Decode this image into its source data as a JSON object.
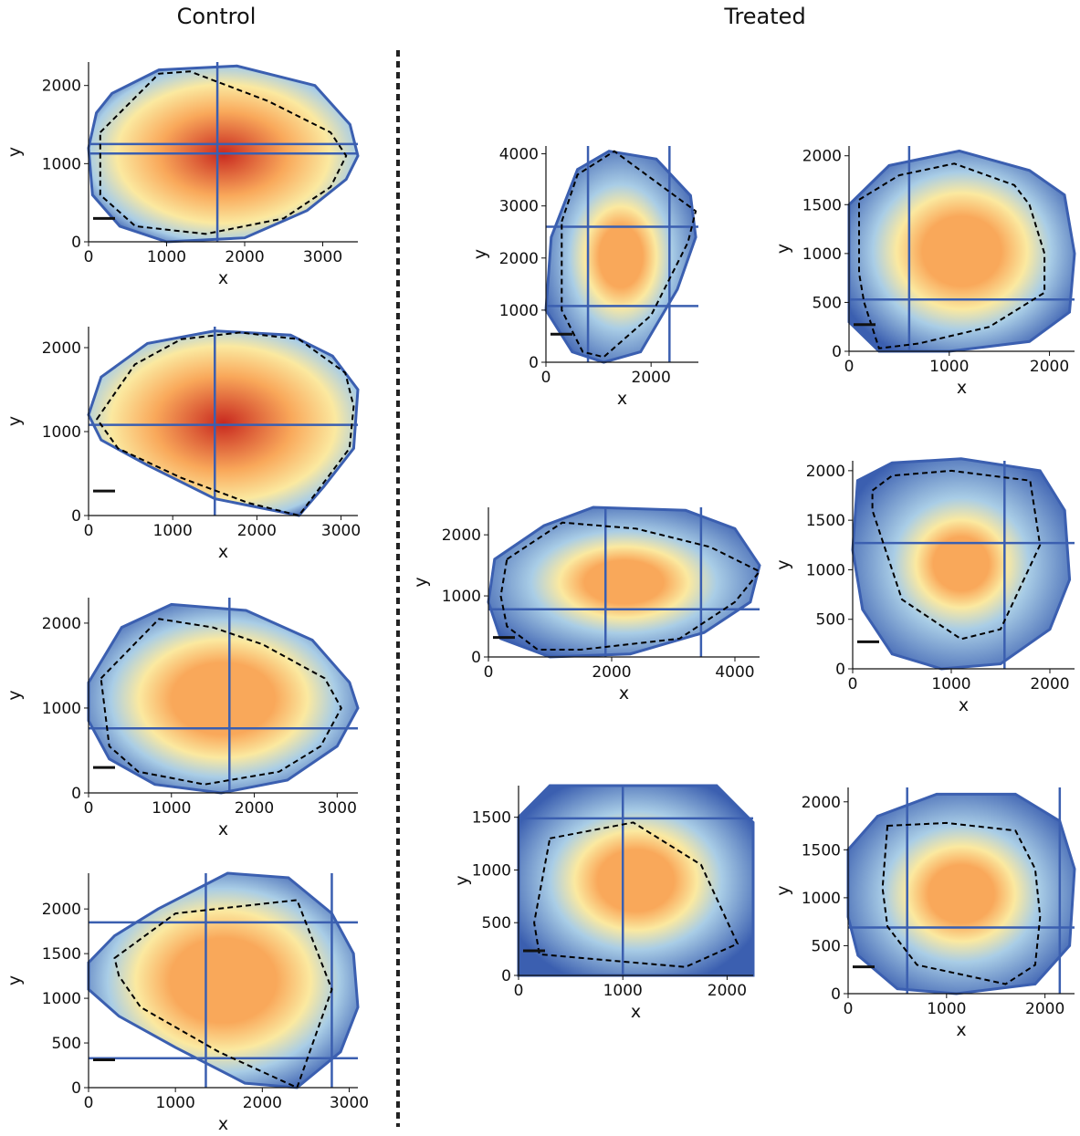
{
  "groups": {
    "control": "Control",
    "treated": "Treated"
  },
  "colors": {
    "hot": "#c8281f",
    "warm": "#f9a85a",
    "mid": "#fbe9a0",
    "cool": "#a9cde6",
    "cold": "#3b5fb0",
    "axis": "#111111",
    "outline": "#000000"
  },
  "chart_data": [
    {
      "type": "heatmap",
      "group": "Control",
      "xlabel": "x",
      "ylabel": "y",
      "xlim": [
        0,
        3450
      ],
      "ylim": [
        0,
        2300
      ],
      "xticks": [
        0,
        1000,
        2000,
        3000
      ],
      "yticks": [
        0,
        1000,
        2000
      ],
      "hot": 0.75,
      "grid_x": [
        1650
      ],
      "grid_y": [
        1250,
        1130
      ],
      "boundary": [
        [
          300,
          1900
        ],
        [
          900,
          2200
        ],
        [
          1900,
          2250
        ],
        [
          2900,
          2000
        ],
        [
          3350,
          1500
        ],
        [
          3450,
          1100
        ],
        [
          3300,
          800
        ],
        [
          2800,
          400
        ],
        [
          2000,
          50
        ],
        [
          1000,
          0
        ],
        [
          400,
          200
        ],
        [
          50,
          600
        ],
        [
          0,
          1200
        ],
        [
          100,
          1650
        ]
      ],
      "roi": [
        [
          150,
          1400
        ],
        [
          900,
          2150
        ],
        [
          1300,
          2180
        ],
        [
          2300,
          1800
        ],
        [
          3100,
          1400
        ],
        [
          3300,
          1100
        ],
        [
          3100,
          700
        ],
        [
          2500,
          300
        ],
        [
          1500,
          100
        ],
        [
          600,
          200
        ],
        [
          150,
          600
        ]
      ]
    },
    {
      "type": "heatmap",
      "group": "Control",
      "xlabel": "x",
      "ylabel": "y",
      "xlim": [
        0,
        3200
      ],
      "ylim": [
        0,
        2250
      ],
      "xticks": [
        0,
        1000,
        2000,
        3000
      ],
      "yticks": [
        0,
        1000,
        2000
      ],
      "hot": 0.8,
      "grid_x": [
        1500
      ],
      "grid_y": [
        1080
      ],
      "boundary": [
        [
          150,
          1650
        ],
        [
          700,
          2050
        ],
        [
          1500,
          2200
        ],
        [
          2400,
          2150
        ],
        [
          2900,
          1900
        ],
        [
          3200,
          1500
        ],
        [
          3150,
          800
        ],
        [
          2800,
          350
        ],
        [
          2500,
          0
        ],
        [
          1500,
          200
        ],
        [
          700,
          600
        ],
        [
          150,
          900
        ],
        [
          0,
          1200
        ]
      ],
      "roi": [
        [
          100,
          1150
        ],
        [
          550,
          1800
        ],
        [
          1100,
          2100
        ],
        [
          1800,
          2180
        ],
        [
          2500,
          2100
        ],
        [
          3050,
          1700
        ],
        [
          3150,
          1300
        ],
        [
          3100,
          800
        ],
        [
          2500,
          0
        ],
        [
          1900,
          150
        ],
        [
          1100,
          450
        ],
        [
          350,
          800
        ]
      ]
    },
    {
      "type": "heatmap",
      "group": "Control",
      "xlabel": "x",
      "ylabel": "y",
      "xlim": [
        0,
        3250
      ],
      "ylim": [
        0,
        2300
      ],
      "xticks": [
        0,
        1000,
        2000,
        3000
      ],
      "yticks": [
        0,
        1000,
        2000
      ],
      "hot": 0.6,
      "grid_x": [
        1700
      ],
      "grid_y": [
        760
      ],
      "boundary": [
        [
          0,
          1300
        ],
        [
          400,
          1950
        ],
        [
          1000,
          2220
        ],
        [
          1900,
          2150
        ],
        [
          2700,
          1800
        ],
        [
          3150,
          1300
        ],
        [
          3250,
          1000
        ],
        [
          3000,
          550
        ],
        [
          2400,
          150
        ],
        [
          1600,
          0
        ],
        [
          800,
          100
        ],
        [
          250,
          400
        ],
        [
          0,
          850
        ]
      ],
      "roi": [
        [
          150,
          1350
        ],
        [
          850,
          2050
        ],
        [
          1500,
          1950
        ],
        [
          2100,
          1750
        ],
        [
          2850,
          1350
        ],
        [
          3050,
          1000
        ],
        [
          2800,
          550
        ],
        [
          2300,
          250
        ],
        [
          1400,
          100
        ],
        [
          600,
          250
        ],
        [
          250,
          550
        ]
      ]
    },
    {
      "type": "heatmap",
      "group": "Control",
      "xlabel": "x",
      "ylabel": "y",
      "xlim": [
        0,
        3100
      ],
      "ylim": [
        0,
        2400
      ],
      "xticks": [
        0,
        1000,
        2000,
        3000
      ],
      "yticks": [
        0,
        500,
        1000,
        1500,
        2000
      ],
      "hot": 0.62,
      "grid_x": [
        1350,
        2800
      ],
      "grid_y": [
        1850,
        330
      ],
      "boundary": [
        [
          0,
          1400
        ],
        [
          300,
          1700
        ],
        [
          800,
          2000
        ],
        [
          1600,
          2400
        ],
        [
          2300,
          2350
        ],
        [
          2800,
          1950
        ],
        [
          3050,
          1500
        ],
        [
          3100,
          900
        ],
        [
          2900,
          400
        ],
        [
          2400,
          0
        ],
        [
          1800,
          50
        ],
        [
          1000,
          450
        ],
        [
          350,
          800
        ],
        [
          0,
          1100
        ]
      ],
      "roi": [
        [
          300,
          1450
        ],
        [
          1000,
          1950
        ],
        [
          2400,
          2100
        ],
        [
          2800,
          1100
        ],
        [
          2400,
          0
        ],
        [
          1500,
          400
        ],
        [
          600,
          900
        ],
        [
          350,
          1250
        ]
      ]
    },
    {
      "type": "heatmap",
      "group": "Treated",
      "xlabel": "x",
      "ylabel": "y",
      "xlim": [
        0,
        2900
      ],
      "ylim": [
        0,
        4150
      ],
      "xticks": [
        0,
        2000
      ],
      "yticks": [
        0,
        1000,
        2000,
        3000,
        4000
      ],
      "hot": 0.45,
      "grid_x": [
        800,
        2350
      ],
      "grid_y": [
        2600,
        1080
      ],
      "boundary": [
        [
          100,
          2400
        ],
        [
          600,
          3700
        ],
        [
          1200,
          4050
        ],
        [
          2100,
          3900
        ],
        [
          2750,
          3200
        ],
        [
          2850,
          2400
        ],
        [
          2500,
          1400
        ],
        [
          1800,
          200
        ],
        [
          1100,
          0
        ],
        [
          500,
          200
        ],
        [
          0,
          1000
        ]
      ],
      "roi": [
        [
          300,
          2700
        ],
        [
          600,
          3600
        ],
        [
          1300,
          4050
        ],
        [
          2850,
          2900
        ],
        [
          2700,
          2300
        ],
        [
          2000,
          900
        ],
        [
          1100,
          100
        ],
        [
          700,
          200
        ],
        [
          300,
          1000
        ]
      ]
    },
    {
      "type": "heatmap",
      "group": "Treated",
      "xlabel": "x",
      "ylabel": "y",
      "xlim": [
        0,
        2250
      ],
      "ylim": [
        0,
        2100
      ],
      "xticks": [
        0,
        1000,
        2000
      ],
      "yticks": [
        0,
        500,
        1000,
        1500,
        2000
      ],
      "hot": 0.55,
      "grid_x": [
        600
      ],
      "grid_y": [
        530
      ],
      "boundary": [
        [
          0,
          1500
        ],
        [
          400,
          1900
        ],
        [
          1100,
          2050
        ],
        [
          1800,
          1850
        ],
        [
          2150,
          1600
        ],
        [
          2250,
          1000
        ],
        [
          2200,
          400
        ],
        [
          1800,
          100
        ],
        [
          1000,
          0
        ],
        [
          300,
          0
        ],
        [
          0,
          300
        ]
      ],
      "roi": [
        [
          100,
          1550
        ],
        [
          500,
          1800
        ],
        [
          1050,
          1920
        ],
        [
          1650,
          1700
        ],
        [
          1800,
          1500
        ],
        [
          1950,
          1000
        ],
        [
          1950,
          600
        ],
        [
          1400,
          250
        ],
        [
          700,
          80
        ],
        [
          300,
          30
        ],
        [
          150,
          500
        ],
        [
          100,
          800
        ]
      ]
    },
    {
      "type": "heatmap",
      "group": "Treated",
      "xlabel": "x",
      "ylabel": "y",
      "xlim": [
        0,
        4400
      ],
      "ylim": [
        0,
        2450
      ],
      "xticks": [
        0,
        2000,
        4000
      ],
      "yticks": [
        0,
        1000,
        2000
      ],
      "hot": 0.45,
      "grid_x": [
        1900,
        3450
      ],
      "grid_y": [
        780
      ],
      "boundary": [
        [
          100,
          1600
        ],
        [
          900,
          2150
        ],
        [
          1700,
          2450
        ],
        [
          3200,
          2400
        ],
        [
          4000,
          2100
        ],
        [
          4400,
          1500
        ],
        [
          4250,
          900
        ],
        [
          3500,
          400
        ],
        [
          2300,
          50
        ],
        [
          1000,
          0
        ],
        [
          200,
          300
        ],
        [
          0,
          900
        ]
      ],
      "roi": [
        [
          300,
          1600
        ],
        [
          1200,
          2200
        ],
        [
          2400,
          2100
        ],
        [
          3600,
          1800
        ],
        [
          4400,
          1400
        ],
        [
          4000,
          900
        ],
        [
          3100,
          300
        ],
        [
          1500,
          120
        ],
        [
          800,
          120
        ],
        [
          300,
          500
        ],
        [
          200,
          1000
        ]
      ]
    },
    {
      "type": "heatmap",
      "group": "Treated",
      "xlabel": "x",
      "ylabel": "y",
      "xlim": [
        0,
        2250
      ],
      "ylim": [
        0,
        2100
      ],
      "xticks": [
        0,
        1000,
        2000
      ],
      "yticks": [
        0,
        500,
        1000,
        1500,
        2000
      ],
      "hot": 0.4,
      "grid_x": [
        1540
      ],
      "grid_y": [
        1270
      ],
      "boundary": [
        [
          50,
          1900
        ],
        [
          400,
          2080
        ],
        [
          1100,
          2120
        ],
        [
          1900,
          2000
        ],
        [
          2150,
          1600
        ],
        [
          2200,
          900
        ],
        [
          2000,
          400
        ],
        [
          1500,
          50
        ],
        [
          900,
          0
        ],
        [
          400,
          150
        ],
        [
          100,
          600
        ],
        [
          0,
          1200
        ]
      ],
      "roi": [
        [
          200,
          1800
        ],
        [
          400,
          1950
        ],
        [
          1000,
          2000
        ],
        [
          1800,
          1900
        ],
        [
          1900,
          1250
        ],
        [
          1500,
          400
        ],
        [
          1100,
          300
        ],
        [
          500,
          700
        ],
        [
          300,
          1300
        ],
        [
          200,
          1600
        ]
      ]
    },
    {
      "type": "heatmap",
      "group": "Treated",
      "xlabel": "x",
      "ylabel": "y",
      "xlim": [
        0,
        2250
      ],
      "ylim": [
        0,
        1800
      ],
      "xticks": [
        0,
        1000,
        2000
      ],
      "yticks": [
        0,
        500,
        1000,
        1500
      ],
      "hot": 0.5,
      "grid_x": [
        1000
      ],
      "grid_y": [
        1490
      ],
      "boundary": [
        [
          0,
          1500
        ],
        [
          300,
          1800
        ],
        [
          1900,
          1800
        ],
        [
          2250,
          1450
        ],
        [
          2250,
          0
        ],
        [
          0,
          0
        ]
      ],
      "roi": [
        [
          300,
          1300
        ],
        [
          1100,
          1450
        ],
        [
          1750,
          1050
        ],
        [
          2100,
          300
        ],
        [
          1600,
          80
        ],
        [
          200,
          200
        ],
        [
          150,
          500
        ]
      ]
    },
    {
      "type": "heatmap",
      "group": "Treated",
      "xlabel": "x",
      "ylabel": "y",
      "xlim": [
        0,
        2300
      ],
      "ylim": [
        0,
        2150
      ],
      "xticks": [
        0,
        1000,
        2000
      ],
      "yticks": [
        0,
        500,
        1000,
        1500,
        2000
      ],
      "hot": 0.45,
      "grid_x": [
        600,
        2150
      ],
      "grid_y": [
        690
      ],
      "boundary": [
        [
          0,
          1500
        ],
        [
          300,
          1850
        ],
        [
          900,
          2080
        ],
        [
          1700,
          2080
        ],
        [
          2150,
          1800
        ],
        [
          2300,
          1300
        ],
        [
          2250,
          500
        ],
        [
          1900,
          100
        ],
        [
          1100,
          0
        ],
        [
          500,
          50
        ],
        [
          100,
          400
        ],
        [
          0,
          800
        ]
      ],
      "roi": [
        [
          400,
          1750
        ],
        [
          1000,
          1780
        ],
        [
          1700,
          1700
        ],
        [
          1900,
          1300
        ],
        [
          1950,
          800
        ],
        [
          1900,
          300
        ],
        [
          1600,
          100
        ],
        [
          700,
          300
        ],
        [
          400,
          700
        ],
        [
          350,
          1100
        ]
      ]
    }
  ]
}
